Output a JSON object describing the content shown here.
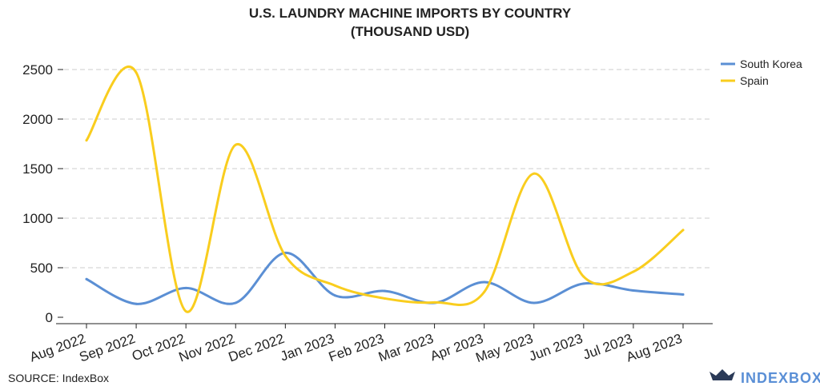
{
  "chart_data": {
    "type": "line",
    "title": "U.S. LAUNDRY MACHINE IMPORTS BY COUNTRY",
    "subtitle": "(THOUSAND USD)",
    "xlabel": "",
    "ylabel": "",
    "categories": [
      "Aug 2022",
      "Sep 2022",
      "Oct 2022",
      "Nov 2022",
      "Dec 2022",
      "Jan 2023",
      "Feb 2023",
      "Mar 2023",
      "Apr 2023",
      "May 2023",
      "Jun 2023",
      "Jul 2023",
      "Aug 2023"
    ],
    "ylim": [
      0,
      2500
    ],
    "yticks": [
      0,
      500,
      1000,
      1500,
      2000,
      2500
    ],
    "grid": true,
    "legend_position": "top-right",
    "series": [
      {
        "name": "South Korea",
        "color": "#5b8fd4",
        "values": [
          385,
          135,
          295,
          145,
          650,
          220,
          265,
          145,
          355,
          145,
          340,
          270,
          230
        ]
      },
      {
        "name": "Spain",
        "color": "#f9cd1e",
        "values": [
          1785,
          2470,
          60,
          1740,
          620,
          320,
          190,
          150,
          255,
          1450,
          410,
          460,
          880
        ]
      }
    ]
  },
  "footer": {
    "source": "SOURCE: IndexBox",
    "brand": "INDEXBOX"
  }
}
